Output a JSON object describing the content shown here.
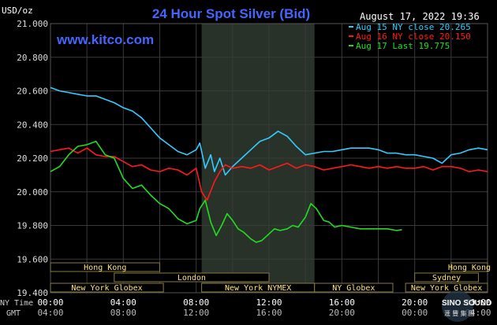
{
  "chart_data": {
    "type": "line",
    "title": "24 Hour Spot Silver (Bid)",
    "ylabel": "USD/oz",
    "ylim": [
      19.4,
      21.0
    ],
    "yticks": [
      19.4,
      19.6,
      19.8,
      20.0,
      20.2,
      20.4,
      20.6,
      20.8,
      21.0
    ],
    "ytick_labels": [
      "19.400",
      "19.600",
      "19.800",
      "20.000",
      "20.200",
      "20.400",
      "20.600",
      "20.800",
      "21.000"
    ],
    "x_hours_ny": [
      0,
      24
    ],
    "timestamp": "August 17, 2022 19:36",
    "website": "www.kitco.com",
    "x_axis_rows": [
      {
        "label": "NY Time",
        "ticks": [
          "00:00",
          "04:00",
          "08:00",
          "12:00",
          "16:00",
          "20:00",
          "00:00"
        ]
      },
      {
        "label": "GMT",
        "ticks": [
          "04:00",
          "08:00",
          "12:00",
          "16:00",
          "20:00",
          "00:00",
          "04:00"
        ]
      }
    ],
    "grid": true,
    "legend_position": "top-right",
    "series": [
      {
        "name": "Aug 15 NY close 20.265",
        "color": "#33ccff",
        "x": [
          0,
          0.5,
          1,
          1.5,
          2,
          2.5,
          3,
          3.5,
          4,
          4.5,
          5,
          5.5,
          6,
          6.5,
          7,
          7.5,
          8,
          8.2,
          8.5,
          8.8,
          9,
          9.3,
          9.6,
          10,
          10.5,
          11,
          11.5,
          12,
          12.5,
          13,
          13.5,
          14,
          14.5,
          15,
          15.5,
          16,
          16.5,
          17,
          17.5,
          18,
          18.5,
          19,
          19.5,
          20,
          20.5,
          21,
          21.5,
          22,
          22.5,
          23,
          23.5,
          24
        ],
        "y": [
          20.62,
          20.6,
          20.59,
          20.58,
          20.57,
          20.57,
          20.55,
          20.53,
          20.5,
          20.48,
          20.44,
          20.38,
          20.32,
          20.28,
          20.24,
          20.22,
          20.25,
          20.29,
          20.14,
          20.22,
          20.12,
          20.2,
          20.1,
          20.15,
          20.2,
          20.25,
          20.3,
          20.32,
          20.36,
          20.33,
          20.27,
          20.22,
          20.23,
          20.24,
          20.24,
          20.25,
          20.26,
          20.26,
          20.26,
          20.25,
          20.23,
          20.23,
          20.22,
          20.22,
          20.21,
          20.2,
          20.17,
          20.22,
          20.23,
          20.25,
          20.26,
          20.25
        ]
      },
      {
        "name": "Aug 16 NY close 20.150",
        "color": "#ff1a1a",
        "x": [
          0,
          0.5,
          1,
          1.5,
          2,
          2.5,
          3,
          3.5,
          4,
          4.5,
          5,
          5.5,
          6,
          6.5,
          7,
          7.5,
          8,
          8.3,
          8.6,
          9,
          9.3,
          9.6,
          10,
          10.5,
          11,
          11.5,
          12,
          12.5,
          13,
          13.5,
          14,
          14.5,
          15,
          15.5,
          16,
          16.5,
          17,
          17.5,
          18,
          18.5,
          19,
          19.5,
          20,
          20.5,
          21,
          21.5,
          22,
          22.5,
          23,
          23.5,
          24
        ],
        "y": [
          20.24,
          20.25,
          20.26,
          20.23,
          20.26,
          20.22,
          20.21,
          20.21,
          20.18,
          20.15,
          20.16,
          20.13,
          20.12,
          20.14,
          20.13,
          20.1,
          20.14,
          20.0,
          19.95,
          20.06,
          20.12,
          20.16,
          20.14,
          20.15,
          20.14,
          20.16,
          20.13,
          20.15,
          20.17,
          20.14,
          20.16,
          20.15,
          20.13,
          20.14,
          20.15,
          20.16,
          20.15,
          20.14,
          20.15,
          20.14,
          20.15,
          20.14,
          20.14,
          20.15,
          20.13,
          20.15,
          20.15,
          20.14,
          20.12,
          20.13,
          20.12
        ]
      },
      {
        "name": "Aug 17 Last 19.775",
        "color": "#22dd22",
        "x": [
          0,
          0.5,
          1,
          1.5,
          2,
          2.5,
          3,
          3.5,
          4,
          4.5,
          5,
          5.5,
          6,
          6.5,
          7,
          7.5,
          8,
          8.2,
          8.5,
          8.8,
          9.1,
          9.4,
          9.7,
          10,
          10.3,
          10.6,
          11,
          11.3,
          11.6,
          12,
          12.3,
          12.6,
          13,
          13.3,
          13.6,
          14,
          14.3,
          14.6,
          15,
          15.3,
          15.6,
          16,
          16.5,
          17,
          17.5,
          18,
          18.5,
          19,
          19.3
        ],
        "y": [
          20.12,
          20.15,
          20.22,
          20.27,
          20.28,
          20.3,
          20.22,
          20.2,
          20.08,
          20.02,
          20.04,
          19.98,
          19.93,
          19.9,
          19.84,
          19.81,
          19.83,
          19.9,
          19.95,
          19.82,
          19.74,
          19.8,
          19.87,
          19.83,
          19.78,
          19.76,
          19.72,
          19.7,
          19.71,
          19.75,
          19.78,
          19.77,
          19.78,
          19.8,
          19.79,
          19.85,
          19.93,
          19.9,
          19.83,
          19.82,
          19.79,
          19.8,
          19.79,
          19.78,
          19.78,
          19.78,
          19.78,
          19.77,
          19.775
        ]
      }
    ],
    "sessions": [
      {
        "label": "Hong Kong",
        "start": 0,
        "end": 6,
        "row": 0
      },
      {
        "label": "London",
        "start": 3.5,
        "end": 12,
        "row": 1
      },
      {
        "label": "New York NYMEX",
        "start": 8.3,
        "end": 14.5,
        "row": 2
      },
      {
        "label": "New York Globex",
        "start": 0,
        "end": 6.2,
        "row": 2
      },
      {
        "label": "NY Globex",
        "start": 14.5,
        "end": 18.8,
        "row": 2
      },
      {
        "label": "Hong Kong",
        "start": 22,
        "end": 26,
        "row": 0
      },
      {
        "label": "Sydney",
        "start": 20,
        "end": 23.5,
        "row": 1
      },
      {
        "label": "New York Globex",
        "start": 19.5,
        "end": 25,
        "row": 2
      }
    ],
    "highlight_band_hours": [
      8.3,
      14.5
    ]
  },
  "watermark": {
    "text": "SINO SOUND",
    "subtext": "滙 豐 集 團"
  }
}
